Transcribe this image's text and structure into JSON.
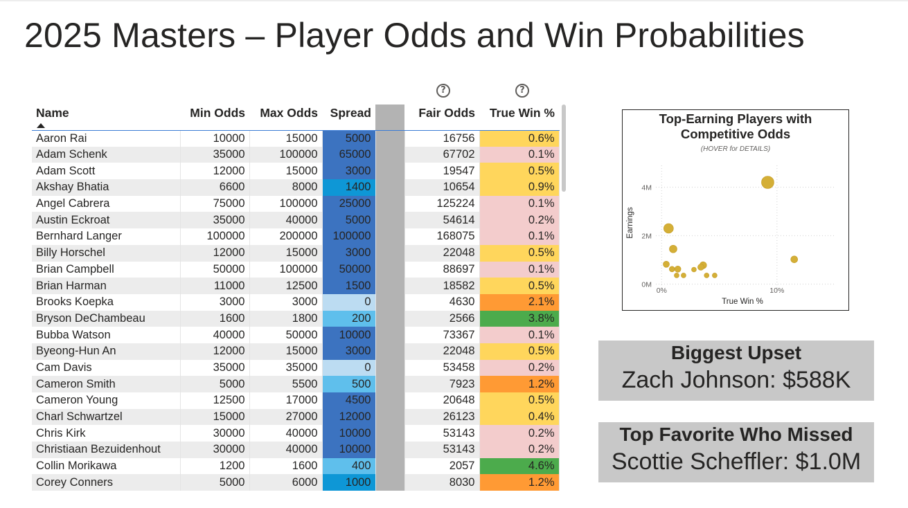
{
  "page": {
    "title": "2025 Masters – Player Odds and Win Probabilities"
  },
  "table": {
    "columns": [
      "Name",
      "Min Odds",
      "Max Odds",
      "Spread",
      "Fair Odds",
      "True Win %"
    ],
    "help_icon": "question-circle-icon",
    "sorted_column": "Name",
    "sort_direction": "ascending",
    "rows": [
      {
        "name": "Aaron Rai",
        "min": "10000",
        "max": "15000",
        "spread": "5000",
        "fair": "16756",
        "win": "0.6%"
      },
      {
        "name": "Adam Schenk",
        "min": "35000",
        "max": "100000",
        "spread": "65000",
        "fair": "67702",
        "win": "0.1%"
      },
      {
        "name": "Adam Scott",
        "min": "12000",
        "max": "15000",
        "spread": "3000",
        "fair": "19547",
        "win": "0.5%"
      },
      {
        "name": "Akshay Bhatia",
        "min": "6600",
        "max": "8000",
        "spread": "1400",
        "fair": "10654",
        "win": "0.9%"
      },
      {
        "name": "Angel Cabrera",
        "min": "75000",
        "max": "100000",
        "spread": "25000",
        "fair": "125224",
        "win": "0.1%"
      },
      {
        "name": "Austin Eckroat",
        "min": "35000",
        "max": "40000",
        "spread": "5000",
        "fair": "54614",
        "win": "0.2%"
      },
      {
        "name": "Bernhard Langer",
        "min": "100000",
        "max": "200000",
        "spread": "100000",
        "fair": "168075",
        "win": "0.1%"
      },
      {
        "name": "Billy Horschel",
        "min": "12000",
        "max": "15000",
        "spread": "3000",
        "fair": "22048",
        "win": "0.5%"
      },
      {
        "name": "Brian Campbell",
        "min": "50000",
        "max": "100000",
        "spread": "50000",
        "fair": "88697",
        "win": "0.1%"
      },
      {
        "name": "Brian Harman",
        "min": "11000",
        "max": "12500",
        "spread": "1500",
        "fair": "18582",
        "win": "0.5%"
      },
      {
        "name": "Brooks Koepka",
        "min": "3000",
        "max": "3000",
        "spread": "0",
        "fair": "4630",
        "win": "2.1%"
      },
      {
        "name": "Bryson DeChambeau",
        "min": "1600",
        "max": "1800",
        "spread": "200",
        "fair": "2566",
        "win": "3.8%"
      },
      {
        "name": "Bubba Watson",
        "min": "40000",
        "max": "50000",
        "spread": "10000",
        "fair": "73367",
        "win": "0.1%"
      },
      {
        "name": "Byeong-Hun An",
        "min": "12000",
        "max": "15000",
        "spread": "3000",
        "fair": "22048",
        "win": "0.5%"
      },
      {
        "name": "Cam Davis",
        "min": "35000",
        "max": "35000",
        "spread": "0",
        "fair": "53458",
        "win": "0.2%"
      },
      {
        "name": "Cameron Smith",
        "min": "5000",
        "max": "5500",
        "spread": "500",
        "fair": "7923",
        "win": "1.2%"
      },
      {
        "name": "Cameron Young",
        "min": "12500",
        "max": "17000",
        "spread": "4500",
        "fair": "20648",
        "win": "0.5%"
      },
      {
        "name": "Charl Schwartzel",
        "min": "15000",
        "max": "27000",
        "spread": "12000",
        "fair": "26123",
        "win": "0.4%"
      },
      {
        "name": "Chris Kirk",
        "min": "30000",
        "max": "40000",
        "spread": "10000",
        "fair": "53143",
        "win": "0.2%"
      },
      {
        "name": "Christiaan Bezuidenhout",
        "min": "30000",
        "max": "40000",
        "spread": "10000",
        "fair": "53143",
        "win": "0.2%"
      },
      {
        "name": "Collin Morikawa",
        "min": "1200",
        "max": "1600",
        "spread": "400",
        "fair": "2057",
        "win": "4.6%"
      },
      {
        "name": "Corey Conners",
        "min": "5000",
        "max": "6000",
        "spread": "1000",
        "fair": "8030",
        "win": "1.2%"
      }
    ],
    "colors": {
      "spread_0": "#bcdcf2",
      "spread_low": "#5fbfec",
      "spread_mid": "#0e97d6",
      "spread_high": "#3c73c0",
      "win_low": "#f3cccc",
      "win_mid": "#ffd65c",
      "win_high": "#ff9a34",
      "win_top": "#4cab4c",
      "gap_column": "#b3b3b3",
      "row_stripe": "#ececec"
    }
  },
  "scatter": {
    "title_line1": "Top-Earning Players with",
    "title_line2": "Competitive Odds",
    "subtitle": "(HOVER for DETAILS)",
    "chart_data": {
      "type": "scatter",
      "xlabel": "True Win %",
      "ylabel": "Earnings",
      "xlim": [
        -0.5,
        15
      ],
      "ylim": [
        -0.3,
        4.9
      ],
      "x_ticks": [
        {
          "v": 0,
          "label": "0%"
        },
        {
          "v": 10,
          "label": "10%"
        }
      ],
      "y_ticks": [
        {
          "v": 0,
          "label": "0M"
        },
        {
          "v": 2,
          "label": "2M"
        },
        {
          "v": 4,
          "label": "4M"
        }
      ],
      "grid": true,
      "point_color": "#d4af37",
      "points": [
        {
          "x": 9.2,
          "y": 4.2,
          "size": 9
        },
        {
          "x": 0.6,
          "y": 2.3,
          "size": 7
        },
        {
          "x": 1.0,
          "y": 1.45,
          "size": 5.5
        },
        {
          "x": 11.5,
          "y": 1.02,
          "size": 5
        },
        {
          "x": 0.4,
          "y": 0.82,
          "size": 4.5
        },
        {
          "x": 3.6,
          "y": 0.78,
          "size": 5
        },
        {
          "x": 3.4,
          "y": 0.7,
          "size": 4.5
        },
        {
          "x": 0.9,
          "y": 0.62,
          "size": 4
        },
        {
          "x": 1.4,
          "y": 0.62,
          "size": 4.5
        },
        {
          "x": 2.8,
          "y": 0.6,
          "size": 3.5
        },
        {
          "x": 1.3,
          "y": 0.36,
          "size": 3.5
        },
        {
          "x": 1.9,
          "y": 0.36,
          "size": 3.5
        },
        {
          "x": 3.9,
          "y": 0.36,
          "size": 3.5
        },
        {
          "x": 4.6,
          "y": 0.36,
          "size": 3.5
        }
      ]
    }
  },
  "kpis": {
    "upset": {
      "label": "Biggest Upset",
      "value": "Zach Johnson: $588K"
    },
    "missed": {
      "label": "Top Favorite Who Missed",
      "value": "Scottie Scheffler: $1.0M"
    }
  }
}
